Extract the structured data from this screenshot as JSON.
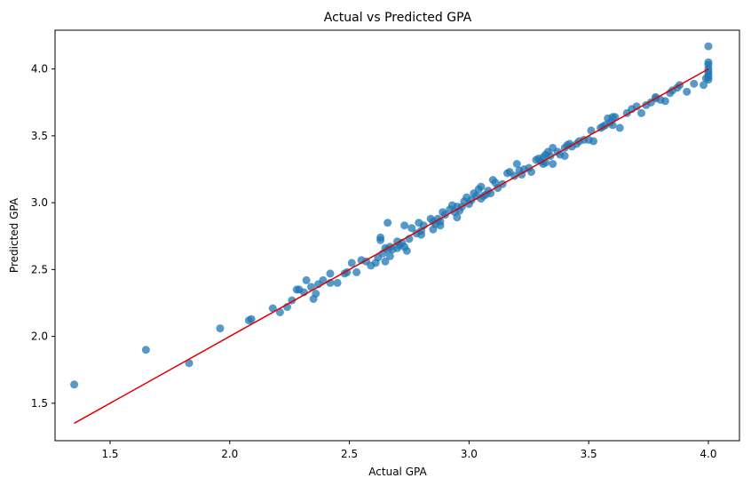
{
  "chart_data": {
    "type": "scatter",
    "title": "Actual vs Predicted GPA",
    "xlabel": "Actual GPA",
    "ylabel": "Predicted GPA",
    "xlim": [
      1.27,
      4.13
    ],
    "ylim": [
      1.22,
      4.29
    ],
    "xticks": [
      1.5,
      2.0,
      2.5,
      3.0,
      3.5,
      4.0
    ],
    "yticks": [
      1.5,
      2.0,
      2.5,
      3.0,
      3.5,
      4.0
    ],
    "xtick_labels": [
      "1.5",
      "2.0",
      "2.5",
      "3.0",
      "3.5",
      "4.0"
    ],
    "ytick_labels": [
      "1.5",
      "2.0",
      "2.5",
      "3.0",
      "3.5",
      "4.0"
    ],
    "grid": false,
    "legend": "none",
    "point_color": "#1f77b4",
    "line_color": "#e00000",
    "reference_line": {
      "x": [
        1.35,
        4.0
      ],
      "y": [
        1.35,
        4.0
      ]
    },
    "points": [
      [
        1.35,
        1.64
      ],
      [
        1.65,
        1.9
      ],
      [
        1.83,
        1.8
      ],
      [
        1.96,
        2.06
      ],
      [
        2.08,
        2.12
      ],
      [
        2.09,
        2.13
      ],
      [
        2.18,
        2.21
      ],
      [
        2.21,
        2.18
      ],
      [
        2.24,
        2.22
      ],
      [
        2.26,
        2.27
      ],
      [
        2.28,
        2.35
      ],
      [
        2.29,
        2.35
      ],
      [
        2.31,
        2.33
      ],
      [
        2.32,
        2.42
      ],
      [
        2.34,
        2.37
      ],
      [
        2.35,
        2.28
      ],
      [
        2.36,
        2.32
      ],
      [
        2.37,
        2.39
      ],
      [
        2.39,
        2.42
      ],
      [
        2.42,
        2.47
      ],
      [
        2.42,
        2.4
      ],
      [
        2.45,
        2.4
      ],
      [
        2.48,
        2.47
      ],
      [
        2.49,
        2.48
      ],
      [
        2.51,
        2.55
      ],
      [
        2.53,
        2.48
      ],
      [
        2.55,
        2.57
      ],
      [
        2.57,
        2.56
      ],
      [
        2.59,
        2.53
      ],
      [
        2.61,
        2.55
      ],
      [
        2.62,
        2.59
      ],
      [
        2.63,
        2.74
      ],
      [
        2.63,
        2.72
      ],
      [
        2.64,
        2.62
      ],
      [
        2.65,
        2.66
      ],
      [
        2.65,
        2.56
      ],
      [
        2.66,
        2.85
      ],
      [
        2.66,
        2.65
      ],
      [
        2.67,
        2.6
      ],
      [
        2.67,
        2.67
      ],
      [
        2.68,
        2.65
      ],
      [
        2.7,
        2.66
      ],
      [
        2.7,
        2.71
      ],
      [
        2.71,
        2.68
      ],
      [
        2.72,
        2.7
      ],
      [
        2.73,
        2.83
      ],
      [
        2.73,
        2.67
      ],
      [
        2.74,
        2.64
      ],
      [
        2.75,
        2.73
      ],
      [
        2.76,
        2.81
      ],
      [
        2.78,
        2.77
      ],
      [
        2.79,
        2.85
      ],
      [
        2.8,
        2.79
      ],
      [
        2.8,
        2.76
      ],
      [
        2.81,
        2.83
      ],
      [
        2.84,
        2.88
      ],
      [
        2.85,
        2.86
      ],
      [
        2.85,
        2.8
      ],
      [
        2.86,
        2.84
      ],
      [
        2.87,
        2.88
      ],
      [
        2.88,
        2.83
      ],
      [
        2.88,
        2.86
      ],
      [
        2.89,
        2.93
      ],
      [
        2.9,
        2.91
      ],
      [
        2.92,
        2.95
      ],
      [
        2.93,
        2.98
      ],
      [
        2.94,
        2.93
      ],
      [
        2.95,
        2.89
      ],
      [
        2.95,
        2.97
      ],
      [
        2.96,
        2.94
      ],
      [
        2.97,
        2.97
      ],
      [
        2.98,
        3.01
      ],
      [
        2.99,
        3.04
      ],
      [
        3.0,
        2.99
      ],
      [
        3.01,
        3.02
      ],
      [
        3.02,
        3.07
      ],
      [
        3.03,
        3.05
      ],
      [
        3.04,
        3.1
      ],
      [
        3.05,
        3.12
      ],
      [
        3.05,
        3.03
      ],
      [
        3.06,
        3.05
      ],
      [
        3.07,
        3.06
      ],
      [
        3.08,
        3.09
      ],
      [
        3.09,
        3.07
      ],
      [
        3.1,
        3.17
      ],
      [
        3.11,
        3.15
      ],
      [
        3.12,
        3.11
      ],
      [
        3.14,
        3.14
      ],
      [
        3.16,
        3.22
      ],
      [
        3.17,
        3.23
      ],
      [
        3.19,
        3.2
      ],
      [
        3.2,
        3.29
      ],
      [
        3.21,
        3.24
      ],
      [
        3.22,
        3.21
      ],
      [
        3.23,
        3.25
      ],
      [
        3.25,
        3.26
      ],
      [
        3.26,
        3.23
      ],
      [
        3.28,
        3.32
      ],
      [
        3.29,
        3.33
      ],
      [
        3.3,
        3.31
      ],
      [
        3.31,
        3.34
      ],
      [
        3.31,
        3.29
      ],
      [
        3.32,
        3.36
      ],
      [
        3.32,
        3.3
      ],
      [
        3.33,
        3.38
      ],
      [
        3.34,
        3.35
      ],
      [
        3.35,
        3.41
      ],
      [
        3.35,
        3.29
      ],
      [
        3.37,
        3.38
      ],
      [
        3.38,
        3.36
      ],
      [
        3.4,
        3.41
      ],
      [
        3.4,
        3.35
      ],
      [
        3.41,
        3.43
      ],
      [
        3.42,
        3.44
      ],
      [
        3.43,
        3.42
      ],
      [
        3.45,
        3.44
      ],
      [
        3.46,
        3.46
      ],
      [
        3.48,
        3.47
      ],
      [
        3.5,
        3.47
      ],
      [
        3.51,
        3.54
      ],
      [
        3.52,
        3.46
      ],
      [
        3.55,
        3.56
      ],
      [
        3.56,
        3.57
      ],
      [
        3.57,
        3.58
      ],
      [
        3.58,
        3.63
      ],
      [
        3.59,
        3.6
      ],
      [
        3.6,
        3.58
      ],
      [
        3.6,
        3.64
      ],
      [
        3.61,
        3.64
      ],
      [
        3.63,
        3.56
      ],
      [
        3.66,
        3.67
      ],
      [
        3.68,
        3.7
      ],
      [
        3.7,
        3.72
      ],
      [
        3.72,
        3.67
      ],
      [
        3.74,
        3.73
      ],
      [
        3.76,
        3.75
      ],
      [
        3.78,
        3.79
      ],
      [
        3.78,
        3.78
      ],
      [
        3.8,
        3.77
      ],
      [
        3.82,
        3.76
      ],
      [
        3.84,
        3.82
      ],
      [
        3.85,
        3.84
      ],
      [
        3.87,
        3.86
      ],
      [
        3.88,
        3.88
      ],
      [
        3.91,
        3.83
      ],
      [
        3.94,
        3.89
      ],
      [
        3.98,
        3.88
      ],
      [
        3.99,
        3.93
      ],
      [
        4.0,
        3.92
      ],
      [
        4.0,
        3.96
      ],
      [
        4.0,
        4.0
      ],
      [
        4.0,
        3.98
      ],
      [
        4.0,
        3.94
      ],
      [
        4.0,
        4.03
      ],
      [
        4.0,
        4.05
      ],
      [
        4.0,
        4.17
      ]
    ]
  }
}
